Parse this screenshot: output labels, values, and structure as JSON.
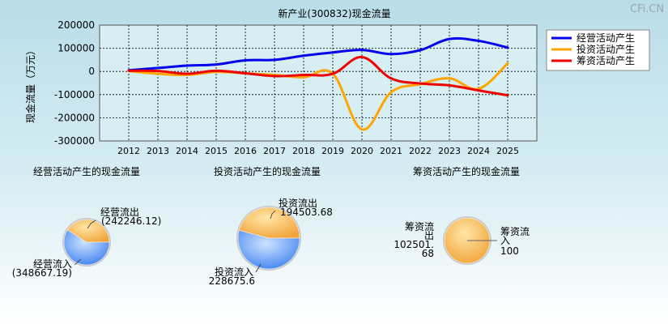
{
  "watermark": "CFi.CN",
  "chart_data": [
    {
      "type": "line",
      "title": "新产业(300832)现金流量",
      "ylabel": "现金流量（万元）",
      "x": [
        "2012",
        "2013",
        "2014",
        "2015",
        "2016",
        "2017",
        "2018",
        "2019",
        "2020",
        "2021",
        "2022",
        "2023",
        "2024",
        "2025"
      ],
      "ylim": [
        -300000,
        200000
      ],
      "yticks": [
        200000,
        100000,
        0,
        -100000,
        -200000,
        -300000
      ],
      "grid": true,
      "legend_position": "top-right",
      "series": [
        {
          "name": "经营活动产生",
          "color": "#0000ee",
          "values": [
            5000,
            15000,
            25000,
            30000,
            48000,
            50000,
            68000,
            82000,
            93000,
            75000,
            92000,
            140000,
            132000,
            103000
          ]
        },
        {
          "name": "投资活动产生",
          "color": "#ffa500",
          "values": [
            2000,
            -10000,
            -15000,
            -2000,
            -8000,
            -15000,
            -25000,
            -10000,
            -250000,
            -90000,
            -55000,
            -30000,
            -75000,
            35000
          ]
        },
        {
          "name": "筹资活动产生",
          "color": "#ee0000",
          "values": [
            3000,
            2000,
            -10000,
            3000,
            -8000,
            -20000,
            -15000,
            -10000,
            62000,
            -30000,
            -52000,
            -60000,
            -82000,
            -103000
          ]
        }
      ]
    },
    {
      "type": "pie",
      "title": "经营活动产生的现金流量",
      "labels": [
        "经营流出",
        "经营流入"
      ],
      "values": [
        242246.12,
        348667.19
      ],
      "value_labels": [
        "(242246.12)",
        "(348667.19)"
      ],
      "colors": [
        "#f2a93b",
        "#4f8ef5"
      ]
    },
    {
      "type": "pie",
      "title": "投资活动产生的现金流量",
      "labels": [
        "投资流出",
        "投资流入"
      ],
      "values": [
        194503.68,
        228675.6
      ],
      "value_labels": [
        "194503.68",
        "228675.6"
      ],
      "colors": [
        "#f2a93b",
        "#4f8ef5"
      ]
    },
    {
      "type": "pie",
      "title": "筹资活动产生的现金流量",
      "labels": [
        "筹资流出",
        "筹资流入"
      ],
      "values": [
        102501.68,
        100
      ],
      "value_labels": [
        "102501.68",
        "100"
      ],
      "colors": [
        "#f2a93b",
        "#4f8ef5"
      ]
    }
  ]
}
